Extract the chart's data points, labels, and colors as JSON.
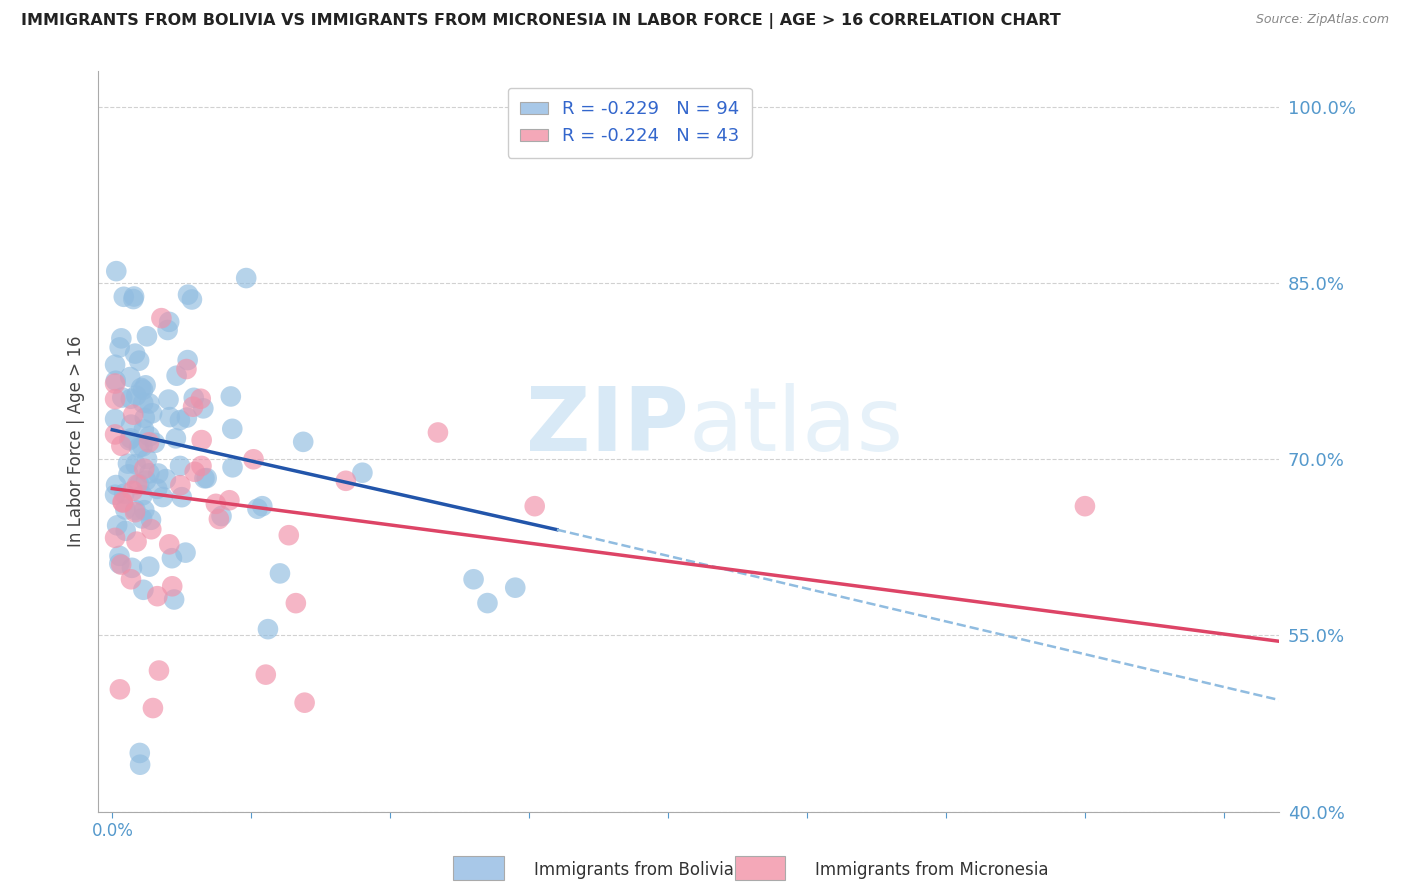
{
  "title": "IMMIGRANTS FROM BOLIVIA VS IMMIGRANTS FROM MICRONESIA IN LABOR FORCE | AGE > 16 CORRELATION CHART",
  "source": "Source: ZipAtlas.com",
  "ylabel_left": "In Labor Force | Age > 16",
  "y_right_ticks": [
    40.0,
    55.0,
    70.0,
    85.0,
    100.0
  ],
  "legend_entries": [
    {
      "label": "R = -0.229   N = 94",
      "color": "#a8c8e8"
    },
    {
      "label": "R = -0.224   N = 43",
      "color": "#f4a8b8"
    }
  ],
  "bolivia_color": "#90bce0",
  "micronesia_color": "#f090a8",
  "bolivia_line_color": "#2255aa",
  "micronesia_line_color": "#dd4466",
  "dashed_line_color": "#90bce0",
  "watermark_zip": "ZIP",
  "watermark_atlas": "atlas",
  "background_color": "#ffffff",
  "grid_color": "#cccccc",
  "axis_label_color": "#5599cc",
  "xlim": [
    -0.05,
    4.2
  ],
  "ylim": [
    40.0,
    103.0
  ],
  "bolivia_trend_x0": 0.0,
  "bolivia_trend_x1": 1.6,
  "bolivia_trend_y0": 72.5,
  "bolivia_trend_y1": 64.0,
  "bolivia_dashed_x0": 1.6,
  "bolivia_dashed_x1": 4.2,
  "bolivia_dashed_y0": 64.0,
  "bolivia_dashed_y1": 49.5,
  "micronesia_trend_x0": 0.0,
  "micronesia_trend_x1": 4.2,
  "micronesia_trend_y0": 67.5,
  "micronesia_trend_y1": 54.5
}
